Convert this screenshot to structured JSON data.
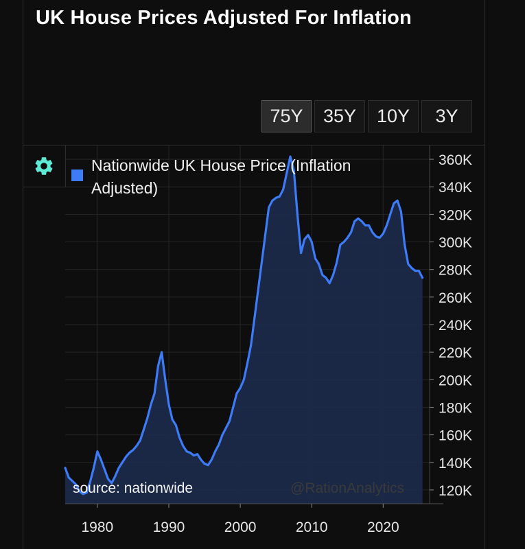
{
  "title": "UK House Prices Adjusted For Inflation",
  "ranges": [
    "75Y",
    "35Y",
    "10Y",
    "3Y"
  ],
  "active_range": "75Y",
  "settings_icon": "gear-icon",
  "source_text": "source: nationwide",
  "watermark": "@RationAnalytics",
  "colors": {
    "line": "#3d7bf7",
    "fill": "#1b2a4a",
    "background": "#0e0e0e",
    "icon": "#5eead4"
  },
  "chart_data": {
    "type": "area",
    "title": "UK House Prices Adjusted For Inflation",
    "series": [
      {
        "name": "Nationwide UK House Price (Inflation Adjusted)",
        "x": [
          1975.5,
          1976,
          1977,
          1977.5,
          1978,
          1978.5,
          1979,
          1979.5,
          1980,
          1980.5,
          1981,
          1981.5,
          1982,
          1982.5,
          1983,
          1983.5,
          1984,
          1984.5,
          1985,
          1985.5,
          1986,
          1986.5,
          1987,
          1987.5,
          1988,
          1988.5,
          1989,
          1989.5,
          1990,
          1990.5,
          1991,
          1991.5,
          1992,
          1992.5,
          1993,
          1993.5,
          1994,
          1994.5,
          1995,
          1995.5,
          1996,
          1996.5,
          1997,
          1997.5,
          1998,
          1998.5,
          1999,
          1999.5,
          2000,
          2000.5,
          2001,
          2001.5,
          2002,
          2002.5,
          2003,
          2003.5,
          2004,
          2004.5,
          2005,
          2005.5,
          2006,
          2006.5,
          2007,
          2007.5,
          2008,
          2008.5,
          2009,
          2009.5,
          2010,
          2010.5,
          2011,
          2011.5,
          2012,
          2012.5,
          2013,
          2013.5,
          2014,
          2014.5,
          2015,
          2015.5,
          2016,
          2016.5,
          2017,
          2017.5,
          2018,
          2018.5,
          2019,
          2019.5,
          2020,
          2020.5,
          2021,
          2021.5,
          2022,
          2022.5,
          2023,
          2023.5,
          2024,
          2024.5,
          2025,
          2025.5
        ],
        "values": [
          136,
          129,
          124,
          119,
          117,
          118,
          126,
          136,
          148,
          142,
          135,
          128,
          125,
          130,
          136,
          140,
          144,
          147,
          149,
          152,
          156,
          164,
          172,
          182,
          190,
          210,
          220,
          200,
          182,
          171,
          167,
          158,
          152,
          148,
          147,
          145,
          146,
          142,
          139,
          138,
          142,
          148,
          153,
          160,
          165,
          170,
          180,
          190,
          194,
          200,
          212,
          225,
          245,
          265,
          285,
          305,
          325,
          330,
          332,
          333,
          338,
          350,
          362,
          352,
          320,
          292,
          302,
          305,
          300,
          288,
          284,
          276,
          274,
          270,
          276,
          285,
          298,
          300,
          303,
          307,
          315,
          317,
          315,
          312,
          312,
          307,
          304,
          303,
          306,
          312,
          320,
          328,
          330,
          322,
          298,
          284,
          281,
          279,
          279,
          274
        ]
      }
    ],
    "xlabel": "",
    "ylabel": "",
    "xlim": [
      1975.5,
      2026.5
    ],
    "ylim": [
      110,
      370
    ],
    "x_ticks": [
      1980,
      1990,
      2000,
      2010,
      2020
    ],
    "x_tick_labels": [
      "1980",
      "1990",
      "2000",
      "2010",
      "2020"
    ],
    "y_ticks": [
      120,
      140,
      160,
      180,
      200,
      220,
      240,
      260,
      280,
      300,
      320,
      340,
      360
    ],
    "y_tick_labels": [
      "120K",
      "140K",
      "160K",
      "180K",
      "200K",
      "220K",
      "240K",
      "260K",
      "280K",
      "300K",
      "320K",
      "340K",
      "360K"
    ],
    "legend_position": "top-left",
    "grid": true
  }
}
